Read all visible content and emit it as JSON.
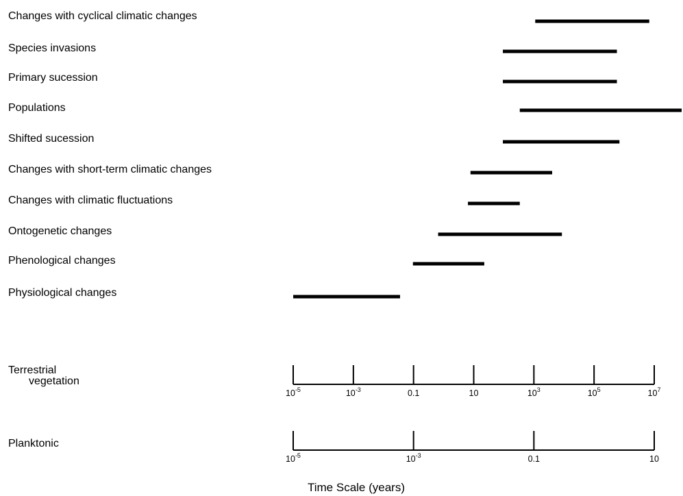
{
  "chart_data": {
    "type": "range-bar",
    "xlabel": "Time Scale (years)",
    "x_scale": "log",
    "xlim": [
      1e-05,
      10000000
    ],
    "series_color": "#000000",
    "ranges": [
      {
        "label": "Changes with cyclical climatic changes",
        "start": 300,
        "end": 1000000
      },
      {
        "label": "Species invasions",
        "start": 30,
        "end": 100000
      },
      {
        "label": "Primary sucession",
        "start": 30,
        "end": 100000
      },
      {
        "label": "Populations",
        "start": 100,
        "end": 10000000
      },
      {
        "label": "Shifted sucession",
        "start": 30,
        "end": 120000
      },
      {
        "label": "Changes with short-term climatic changes",
        "start": 3,
        "end": 1000
      },
      {
        "label": "Changes with climatic fluctuations",
        "start": 2.5,
        "end": 100
      },
      {
        "label": "Ontogenetic changes",
        "start": 0.3,
        "end": 2000
      },
      {
        "label": "Phenological changes",
        "start": 0.05,
        "end": 8
      },
      {
        "label": "Physiological changes",
        "start": 1e-05,
        "end": 0.02
      }
    ],
    "axes": [
      {
        "label_lines": [
          "Terrestrial",
          "vegetation"
        ],
        "ticks": [
          {
            "base": "10",
            "exp": "-5",
            "value": 1e-05
          },
          {
            "base": "10",
            "exp": "-3",
            "value": 0.001
          },
          {
            "base": "0.1",
            "exp": "",
            "value": 0.1
          },
          {
            "base": "10",
            "exp": "",
            "value": 10
          },
          {
            "base": "10",
            "exp": "3",
            "value": 1000
          },
          {
            "base": "10",
            "exp": "5",
            "value": 100000
          },
          {
            "base": "10",
            "exp": "7",
            "value": 10000000
          }
        ]
      },
      {
        "label_lines": [
          "Planktonic"
        ],
        "ticks": [
          {
            "base": "10",
            "exp": "-5",
            "value": 1e-05
          },
          {
            "base": "10",
            "exp": "-3",
            "value": 0.001
          },
          {
            "base": "0.1",
            "exp": "",
            "value": 0.1
          },
          {
            "base": "10",
            "exp": "",
            "value": 10
          }
        ]
      }
    ]
  }
}
